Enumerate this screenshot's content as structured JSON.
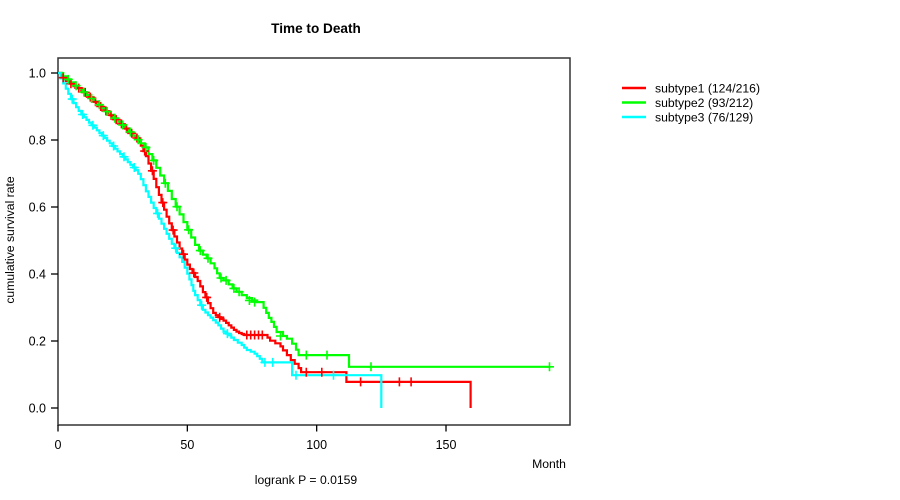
{
  "chart_data": {
    "type": "line",
    "subtype": "kaplan-meier-step-survival",
    "title": "Time to Death",
    "xlabel": "Month",
    "ylabel": "cumulative survival rate",
    "annotation": "logrank P = 0.0159",
    "xlim": [
      0,
      198
    ],
    "ylim": [
      0,
      1
    ],
    "xticks": [
      0,
      50,
      100,
      150
    ],
    "yticks": [
      1.0,
      0.8,
      0.6,
      0.4,
      0.2,
      0.0
    ],
    "grid": "off",
    "legend_position": "right-outside",
    "frame": "full-box",
    "series": [
      {
        "name": "subtype1 (124/216)",
        "color": "#ff0000",
        "events_deaths": 124,
        "n_total": 216,
        "steps": [
          [
            0,
            1
          ],
          [
            1.5,
            0.986
          ],
          [
            3,
            0.976
          ],
          [
            4.5,
            0.968
          ],
          [
            6,
            0.961
          ],
          [
            7.5,
            0.955
          ],
          [
            9,
            0.948
          ],
          [
            10,
            0.942
          ],
          [
            11,
            0.935
          ],
          [
            12,
            0.928
          ],
          [
            13,
            0.921
          ],
          [
            14,
            0.914
          ],
          [
            15,
            0.907
          ],
          [
            16,
            0.9
          ],
          [
            17,
            0.893
          ],
          [
            18,
            0.887
          ],
          [
            19,
            0.881
          ],
          [
            20,
            0.874
          ],
          [
            21,
            0.868
          ],
          [
            22,
            0.861
          ],
          [
            23,
            0.855
          ],
          [
            24,
            0.848
          ],
          [
            25,
            0.841
          ],
          [
            26,
            0.834
          ],
          [
            27,
            0.827
          ],
          [
            28,
            0.82
          ],
          [
            29,
            0.813
          ],
          [
            30,
            0.806
          ],
          [
            31,
            0.795
          ],
          [
            32,
            0.783
          ],
          [
            33,
            0.767
          ],
          [
            34,
            0.752
          ],
          [
            35,
            0.73
          ],
          [
            36,
            0.708
          ],
          [
            37,
            0.684
          ],
          [
            38,
            0.659
          ],
          [
            39,
            0.636
          ],
          [
            40,
            0.613
          ],
          [
            41,
            0.592
          ],
          [
            42,
            0.571
          ],
          [
            43,
            0.551
          ],
          [
            44,
            0.531
          ],
          [
            45,
            0.512
          ],
          [
            46,
            0.494
          ],
          [
            47,
            0.476
          ],
          [
            48,
            0.459
          ],
          [
            49,
            0.443
          ],
          [
            50,
            0.428
          ],
          [
            51,
            0.415
          ],
          [
            52,
            0.403
          ],
          [
            53,
            0.391
          ],
          [
            54,
            0.379
          ],
          [
            55,
            0.363
          ],
          [
            56,
            0.346
          ],
          [
            57,
            0.33
          ],
          [
            58,
            0.313
          ],
          [
            59,
            0.298
          ],
          [
            60,
            0.284
          ],
          [
            61,
            0.277
          ],
          [
            62,
            0.271
          ],
          [
            63,
            0.266
          ],
          [
            64,
            0.261
          ],
          [
            65,
            0.254
          ],
          [
            66,
            0.247
          ],
          [
            67,
            0.24
          ],
          [
            68,
            0.233
          ],
          [
            69,
            0.228
          ],
          [
            70,
            0.224
          ],
          [
            71,
            0.221
          ],
          [
            72,
            0.218
          ],
          [
            81,
            0.21
          ],
          [
            82,
            0.201
          ],
          [
            84,
            0.193
          ],
          [
            86,
            0.184
          ],
          [
            87,
            0.172
          ],
          [
            88.5,
            0.158
          ],
          [
            90,
            0.143
          ],
          [
            91.5,
            0.132
          ],
          [
            93,
            0.119
          ],
          [
            94,
            0.107
          ],
          [
            111.5,
            0.078
          ],
          [
            159.5,
            0
          ]
        ],
        "censors": [
          [
            2,
            0.986
          ],
          [
            5,
            0.968
          ],
          [
            8,
            0.955
          ],
          [
            10.5,
            0.942
          ],
          [
            12.5,
            0.928
          ],
          [
            14.5,
            0.914
          ],
          [
            16.5,
            0.9
          ],
          [
            18.5,
            0.887
          ],
          [
            20.5,
            0.874
          ],
          [
            22.5,
            0.861
          ],
          [
            24.5,
            0.848
          ],
          [
            26.5,
            0.834
          ],
          [
            28.5,
            0.82
          ],
          [
            30.5,
            0.806
          ],
          [
            33.5,
            0.767
          ],
          [
            36.5,
            0.708
          ],
          [
            40.5,
            0.613
          ],
          [
            44.5,
            0.531
          ],
          [
            48.5,
            0.459
          ],
          [
            52.5,
            0.403
          ],
          [
            57.5,
            0.33
          ],
          [
            62.5,
            0.271
          ],
          [
            73,
            0.218
          ],
          [
            74.5,
            0.218
          ],
          [
            76,
            0.218
          ],
          [
            77.5,
            0.218
          ],
          [
            79,
            0.218
          ],
          [
            96,
            0.107
          ],
          [
            102,
            0.107
          ],
          [
            117,
            0.078
          ],
          [
            132,
            0.078
          ],
          [
            136.5,
            0.078
          ]
        ]
      },
      {
        "name": "subtype2 (93/212)",
        "color": "#00ff00",
        "events_deaths": 93,
        "n_total": 212,
        "steps": [
          [
            0,
            1
          ],
          [
            2,
            0.99
          ],
          [
            3.5,
            0.981
          ],
          [
            5,
            0.972
          ],
          [
            6.5,
            0.962
          ],
          [
            8,
            0.953
          ],
          [
            9.5,
            0.943
          ],
          [
            11,
            0.934
          ],
          [
            12.5,
            0.924
          ],
          [
            14,
            0.915
          ],
          [
            15.5,
            0.905
          ],
          [
            17,
            0.895
          ],
          [
            18.5,
            0.885
          ],
          [
            20,
            0.875
          ],
          [
            21.5,
            0.865
          ],
          [
            23,
            0.855
          ],
          [
            24.5,
            0.845
          ],
          [
            26,
            0.835
          ],
          [
            27.5,
            0.824
          ],
          [
            29,
            0.813
          ],
          [
            30.5,
            0.801
          ],
          [
            32,
            0.79
          ],
          [
            33.5,
            0.778
          ],
          [
            35,
            0.758
          ],
          [
            36.5,
            0.739
          ],
          [
            38,
            0.717
          ],
          [
            39.5,
            0.694
          ],
          [
            41,
            0.671
          ],
          [
            42.5,
            0.648
          ],
          [
            44,
            0.624
          ],
          [
            45.5,
            0.601
          ],
          [
            47,
            0.578
          ],
          [
            48.5,
            0.555
          ],
          [
            50,
            0.532
          ],
          [
            51.5,
            0.509
          ],
          [
            53,
            0.487
          ],
          [
            54.5,
            0.47
          ],
          [
            56,
            0.458
          ],
          [
            57.5,
            0.447
          ],
          [
            59,
            0.432
          ],
          [
            60.5,
            0.417
          ],
          [
            61.5,
            0.402
          ],
          [
            62.5,
            0.388
          ],
          [
            64,
            0.381
          ],
          [
            66,
            0.369
          ],
          [
            67.5,
            0.357
          ],
          [
            69,
            0.347
          ],
          [
            71,
            0.337
          ],
          [
            73,
            0.328
          ],
          [
            75,
            0.321
          ],
          [
            77,
            0.316
          ],
          [
            79.5,
            0.299
          ],
          [
            80.5,
            0.284
          ],
          [
            81.5,
            0.269
          ],
          [
            82.5,
            0.257
          ],
          [
            83.5,
            0.242
          ],
          [
            84.5,
            0.227
          ],
          [
            87,
            0.215
          ],
          [
            88.5,
            0.207
          ],
          [
            90.5,
            0.192
          ],
          [
            92,
            0.174
          ],
          [
            93,
            0.158
          ],
          [
            112.5,
            0.123
          ],
          [
            190,
            0.123
          ]
        ],
        "censors": [
          [
            4,
            0.981
          ],
          [
            7,
            0.962
          ],
          [
            10,
            0.943
          ],
          [
            13,
            0.924
          ],
          [
            16,
            0.905
          ],
          [
            19,
            0.885
          ],
          [
            22,
            0.865
          ],
          [
            25,
            0.845
          ],
          [
            28,
            0.824
          ],
          [
            31,
            0.801
          ],
          [
            34,
            0.778
          ],
          [
            37,
            0.739
          ],
          [
            41.5,
            0.671
          ],
          [
            46,
            0.601
          ],
          [
            50.5,
            0.532
          ],
          [
            55,
            0.47
          ],
          [
            58,
            0.447
          ],
          [
            63,
            0.388
          ],
          [
            65,
            0.381
          ],
          [
            68,
            0.357
          ],
          [
            70,
            0.347
          ],
          [
            74,
            0.321
          ],
          [
            76,
            0.316
          ],
          [
            86,
            0.215
          ],
          [
            96,
            0.158
          ],
          [
            104,
            0.158
          ],
          [
            121,
            0.123
          ],
          [
            190,
            0.123
          ]
        ]
      },
      {
        "name": "subtype3 (76/129)",
        "color": "#00ffff",
        "events_deaths": 76,
        "n_total": 129,
        "steps": [
          [
            0,
            1
          ],
          [
            1,
            0.984
          ],
          [
            2,
            0.969
          ],
          [
            3,
            0.953
          ],
          [
            4,
            0.938
          ],
          [
            5,
            0.922
          ],
          [
            6,
            0.91
          ],
          [
            7,
            0.898
          ],
          [
            8,
            0.887
          ],
          [
            9,
            0.876
          ],
          [
            10,
            0.868
          ],
          [
            11,
            0.86
          ],
          [
            12,
            0.852
          ],
          [
            13,
            0.844
          ],
          [
            14,
            0.837
          ],
          [
            15,
            0.829
          ],
          [
            16,
            0.821
          ],
          [
            17,
            0.813
          ],
          [
            18,
            0.806
          ],
          [
            19,
            0.798
          ],
          [
            20,
            0.79
          ],
          [
            21,
            0.782
          ],
          [
            22,
            0.774
          ],
          [
            23,
            0.766
          ],
          [
            24,
            0.758
          ],
          [
            25,
            0.75
          ],
          [
            26,
            0.742
          ],
          [
            27,
            0.734
          ],
          [
            28,
            0.726
          ],
          [
            29,
            0.718
          ],
          [
            30,
            0.71
          ],
          [
            31,
            0.699
          ],
          [
            32,
            0.683
          ],
          [
            33,
            0.665
          ],
          [
            34,
            0.647
          ],
          [
            35,
            0.63
          ],
          [
            36,
            0.613
          ],
          [
            37,
            0.597
          ],
          [
            38,
            0.581
          ],
          [
            39,
            0.565
          ],
          [
            40,
            0.55
          ],
          [
            41,
            0.535
          ],
          [
            42,
            0.52
          ],
          [
            43,
            0.505
          ],
          [
            44,
            0.49
          ],
          [
            45,
            0.477
          ],
          [
            46,
            0.463
          ],
          [
            47,
            0.45
          ],
          [
            48,
            0.436
          ],
          [
            49,
            0.419
          ],
          [
            50,
            0.401
          ],
          [
            50.8,
            0.384
          ],
          [
            51.6,
            0.367
          ],
          [
            52.3,
            0.35
          ],
          [
            53,
            0.337
          ],
          [
            54,
            0.322
          ],
          [
            55,
            0.307
          ],
          [
            56,
            0.293
          ],
          [
            57,
            0.285
          ],
          [
            58,
            0.277
          ],
          [
            59,
            0.27
          ],
          [
            60,
            0.262
          ],
          [
            61,
            0.255
          ],
          [
            62,
            0.247
          ],
          [
            63,
            0.237
          ],
          [
            64,
            0.228
          ],
          [
            65,
            0.222
          ],
          [
            66,
            0.217
          ],
          [
            67,
            0.21
          ],
          [
            68,
            0.203
          ],
          [
            69.5,
            0.195
          ],
          [
            71,
            0.188
          ],
          [
            72,
            0.18
          ],
          [
            73,
            0.173
          ],
          [
            74.5,
            0.168
          ],
          [
            76,
            0.162
          ],
          [
            77,
            0.155
          ],
          [
            78,
            0.147
          ],
          [
            79,
            0.136
          ],
          [
            90.5,
            0.098
          ],
          [
            125,
            0
          ]
        ],
        "censors": [
          [
            5.5,
            0.922
          ],
          [
            9.5,
            0.876
          ],
          [
            13.5,
            0.844
          ],
          [
            17.5,
            0.813
          ],
          [
            21.5,
            0.782
          ],
          [
            25.5,
            0.75
          ],
          [
            29.5,
            0.718
          ],
          [
            38.5,
            0.581
          ],
          [
            45.5,
            0.477
          ],
          [
            55.5,
            0.307
          ],
          [
            65.5,
            0.222
          ],
          [
            80,
            0.136
          ],
          [
            83,
            0.136
          ],
          [
            92,
            0.098
          ],
          [
            106.5,
            0.098
          ]
        ]
      }
    ]
  }
}
